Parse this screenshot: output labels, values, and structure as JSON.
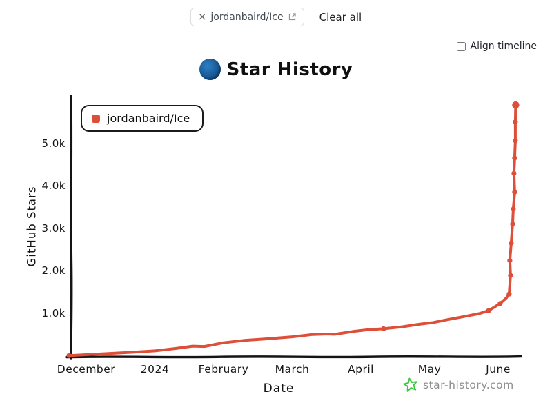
{
  "toolbar": {
    "repo_chip": {
      "close_label": "×",
      "label": "jordanbaird/Ice"
    },
    "clear_all_label": "Clear all",
    "align_timeline": {
      "label": "Align timeline",
      "checked": false
    }
  },
  "header": {
    "title": "Star History",
    "logo_color": "#1c5f9e"
  },
  "chart_data": {
    "type": "line",
    "title": "Star History",
    "xlabel": "Date",
    "ylabel": "GitHub Stars",
    "legend_position": "top-left",
    "grid": false,
    "ylim": [
      0,
      6000
    ],
    "y_ticks": [
      {
        "label": "1.0k",
        "value": 1000
      },
      {
        "label": "2.0k",
        "value": 2000
      },
      {
        "label": "3.0k",
        "value": 3000
      },
      {
        "label": "4.0k",
        "value": 4000
      },
      {
        "label": "5.0k",
        "value": 5000
      }
    ],
    "x_ticks": [
      {
        "label": "December",
        "t": 0
      },
      {
        "label": "2024",
        "t": 1
      },
      {
        "label": "February",
        "t": 2
      },
      {
        "label": "March",
        "t": 3
      },
      {
        "label": "April",
        "t": 4
      },
      {
        "label": "May",
        "t": 5
      },
      {
        "label": "June",
        "t": 6
      }
    ],
    "series": [
      {
        "name": "jordanbaird/Ice",
        "color": "#dd4f38",
        "points_format": "[months_after_december_tick, stars, has_marker]",
        "points": [
          [
            -0.25,
            5,
            1
          ],
          [
            0,
            25,
            0
          ],
          [
            0.35,
            55,
            0
          ],
          [
            0.7,
            85,
            0
          ],
          [
            1.0,
            115,
            0
          ],
          [
            1.3,
            170,
            0
          ],
          [
            1.55,
            225,
            0
          ],
          [
            1.72,
            218,
            0
          ],
          [
            2.0,
            305,
            0
          ],
          [
            2.3,
            360,
            0
          ],
          [
            2.6,
            395,
            0
          ],
          [
            3.0,
            445,
            0
          ],
          [
            3.3,
            500,
            0
          ],
          [
            3.5,
            512,
            0
          ],
          [
            3.62,
            505,
            0
          ],
          [
            3.9,
            575,
            0
          ],
          [
            4.1,
            612,
            0
          ],
          [
            4.33,
            635,
            1
          ],
          [
            4.6,
            680,
            0
          ],
          [
            4.85,
            740,
            0
          ],
          [
            5.05,
            780,
            0
          ],
          [
            5.25,
            845,
            0
          ],
          [
            5.5,
            920,
            0
          ],
          [
            5.72,
            990,
            0
          ],
          [
            5.86,
            1060,
            1
          ],
          [
            6.03,
            1230,
            1
          ],
          [
            6.12,
            1360,
            0
          ],
          [
            6.16,
            1450,
            1
          ],
          [
            6.18,
            1890,
            1
          ],
          [
            6.17,
            2240,
            1
          ],
          [
            6.19,
            2650,
            1
          ],
          [
            6.21,
            3100,
            1
          ],
          [
            6.22,
            3450,
            1
          ],
          [
            6.24,
            3850,
            1
          ],
          [
            6.23,
            4290,
            1
          ],
          [
            6.24,
            4650,
            1
          ],
          [
            6.25,
            5060,
            1
          ],
          [
            6.25,
            5500,
            1
          ],
          [
            6.255,
            5900,
            1
          ]
        ]
      }
    ]
  },
  "footer": {
    "site_label": "star-history.com",
    "star_icon_color": "#3ec63e"
  }
}
